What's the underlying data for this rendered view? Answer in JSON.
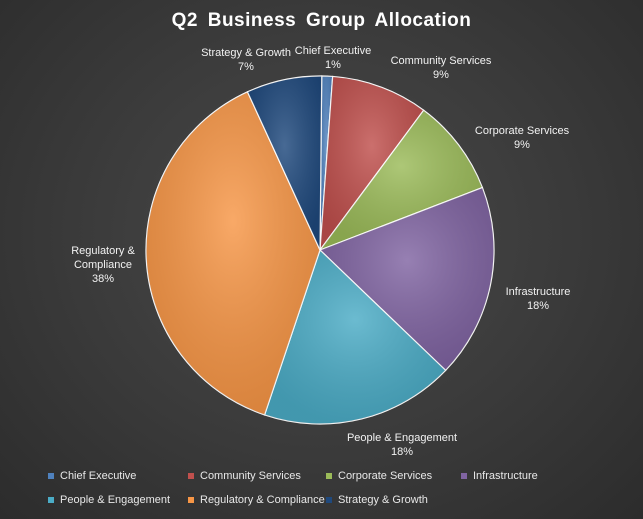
{
  "chart_data": {
    "type": "pie",
    "title": "Q2 Business  Group  Allocation",
    "slices": [
      {
        "name": "Chief Executive",
        "value": 1,
        "label": "1%",
        "color": "#4f81bd"
      },
      {
        "name": "Community Services",
        "value": 9,
        "label": "9%",
        "color": "#c0504d"
      },
      {
        "name": "Corporate Services",
        "value": 9,
        "label": "9%",
        "color": "#9bbb59"
      },
      {
        "name": "Infrastructure",
        "value": 18,
        "label": "18%",
        "color": "#8064a2"
      },
      {
        "name": "People & Engagement",
        "value": 18,
        "label": "18%",
        "color": "#4bacc6"
      },
      {
        "name": "Regulatory & Compliance",
        "value": 38,
        "label": "38%",
        "color": "#f79646"
      },
      {
        "name": "Strategy & Growth",
        "value": 7,
        "label": "7%",
        "color": "#1f497d"
      }
    ],
    "legend_position": "bottom"
  }
}
